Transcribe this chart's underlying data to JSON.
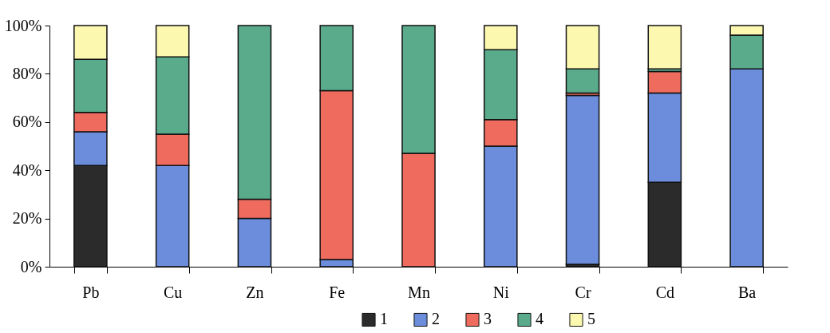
{
  "chart_data": {
    "type": "bar",
    "stacked": true,
    "categories": [
      "Pb",
      "Cu",
      "Zn",
      "Fe",
      "Mn",
      "Ni",
      "Cr",
      "Cd",
      "Ba"
    ],
    "series": [
      {
        "name": "1",
        "color": "#2b2b2b",
        "values": [
          42,
          0,
          0,
          0,
          0,
          0,
          1,
          35,
          0
        ]
      },
      {
        "name": "2",
        "color": "#6b8ddb",
        "values": [
          14,
          42,
          20,
          3,
          0,
          50,
          70,
          37,
          82
        ]
      },
      {
        "name": "3",
        "color": "#ee6b5e",
        "values": [
          8,
          13,
          8,
          70,
          47,
          11,
          1,
          9,
          0
        ]
      },
      {
        "name": "4",
        "color": "#5aab8c",
        "values": [
          22,
          32,
          72,
          27,
          53,
          29,
          10,
          1,
          14
        ]
      },
      {
        "name": "5",
        "color": "#fdf8b0",
        "values": [
          14,
          13,
          0,
          0,
          0,
          10,
          18,
          18,
          4
        ]
      }
    ],
    "ylim": [
      0,
      100
    ],
    "yticks": [
      {
        "value": 0,
        "label": "0%"
      },
      {
        "value": 20,
        "label": "20%"
      },
      {
        "value": 40,
        "label": "40%"
      },
      {
        "value": 60,
        "label": "60%"
      },
      {
        "value": 80,
        "label": "80%"
      },
      {
        "value": 100,
        "label": "100%"
      }
    ],
    "grid": false,
    "legend": "bottom"
  }
}
